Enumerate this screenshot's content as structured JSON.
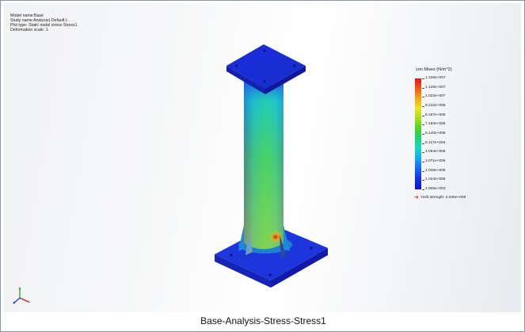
{
  "study_info": {
    "model_name": "Model name:Base",
    "study_name": "Study name:Analysis(-Default-)",
    "plot_type": "Plot type: Static nodal stress Stress1",
    "deformation_scale": "Deformation scale: 1"
  },
  "legend": {
    "title": "von Mises (N/m^2)",
    "labels": [
      "1.228e+007",
      "1.126e+007",
      "1.023e+007",
      "9.210e+006",
      "8.187e+006",
      "7.163e+006",
      "6.140e+006",
      "5.117e+006",
      "4.094e+006",
      "3.071e+006",
      "2.048e+006",
      "1.024e+006",
      "1.009e+003"
    ],
    "yield_strength": "Yield strength: 2.039e+008"
  },
  "colors": {
    "high": "#e3141a",
    "mid": "#4ed227",
    "low": "#0c0fd2",
    "yield_arrow": "#d12020"
  },
  "caption": "Base-Analysis-Stress-Stress1"
}
